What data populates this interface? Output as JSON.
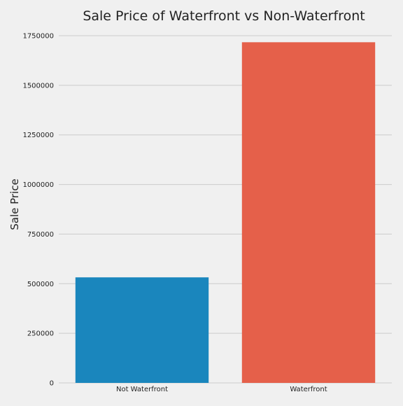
{
  "chart_data": {
    "type": "bar",
    "title": "Sale Price of Waterfront vs Non-Waterfront",
    "xlabel": "",
    "ylabel": "Sale Price",
    "categories": [
      "Not Waterfront",
      "Waterfront"
    ],
    "values": [
      532000,
      1717000
    ],
    "bar_colors": [
      "#1a86bd",
      "#e5604a"
    ],
    "ylim": [
      0,
      1750000
    ],
    "yticks": [
      0,
      250000,
      500000,
      750000,
      1000000,
      1250000,
      1500000,
      1750000
    ],
    "ytick_labels": [
      "0",
      "250000",
      "500000",
      "750000",
      "1000000",
      "1250000",
      "1500000",
      "1750000"
    ],
    "grid": true,
    "background_color": "#f0f0f0",
    "grid_color": "#cbcbcb"
  }
}
